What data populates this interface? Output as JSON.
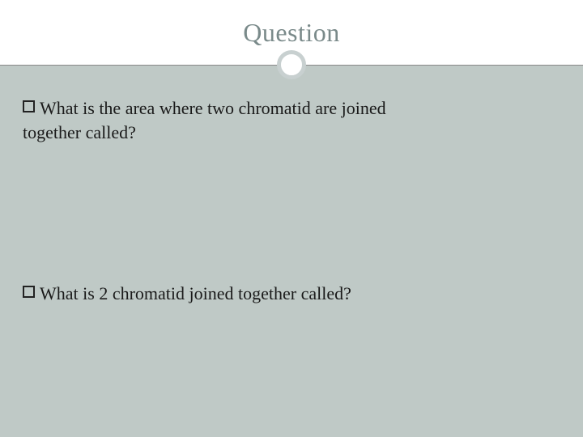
{
  "slide": {
    "title": "Question",
    "title_color": "#7a8a8a",
    "title_fontsize": 32,
    "background_color": "#ffffff",
    "content_background": "#bfc9c6",
    "divider_color": "#888888",
    "circle_border_color": "#c8d0d0",
    "bullets": [
      {
        "line1": "What is the area where two chromatid are joined",
        "line2": "together called?"
      },
      {
        "line1": "What is 2 chromatid joined together called?",
        "line2": ""
      }
    ],
    "text_color": "#1a1a1a",
    "text_fontsize": 22
  }
}
